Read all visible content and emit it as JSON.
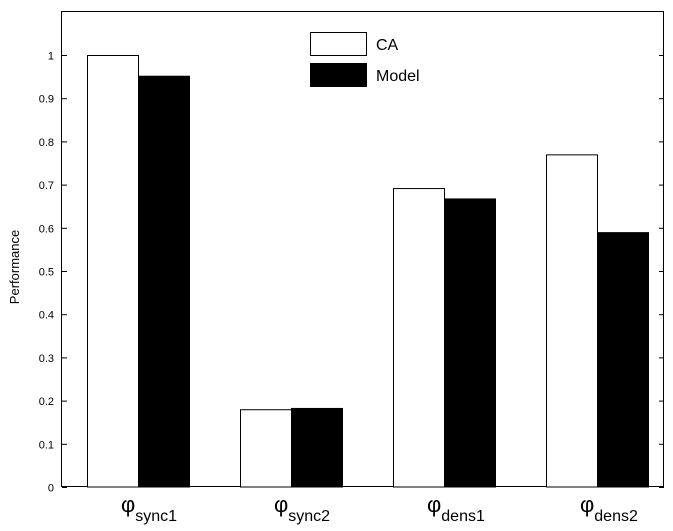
{
  "chart_data": {
    "type": "bar",
    "title": "",
    "xlabel": "",
    "ylabel": "Performance",
    "ylim": [
      0,
      1.1
    ],
    "yticks": [
      "0",
      "0.1",
      "0.2",
      "0.3",
      "0.4",
      "0.5",
      "0.6",
      "0.7",
      "0.8",
      "0.9",
      "1"
    ],
    "categories": [
      {
        "symbol": "φ",
        "sub": "sync1"
      },
      {
        "symbol": "φ",
        "sub": "sync2"
      },
      {
        "symbol": "φ",
        "sub": "dens1"
      },
      {
        "symbol": "φ",
        "sub": "dens2"
      }
    ],
    "series": [
      {
        "name": "CA",
        "color": "#ffffff",
        "values": [
          1.0,
          0.18,
          0.692,
          0.77
        ]
      },
      {
        "name": "Model",
        "color": "#000000",
        "values": [
          0.952,
          0.183,
          0.668,
          0.59
        ]
      }
    ],
    "legend": "top-center",
    "grid": false
  }
}
